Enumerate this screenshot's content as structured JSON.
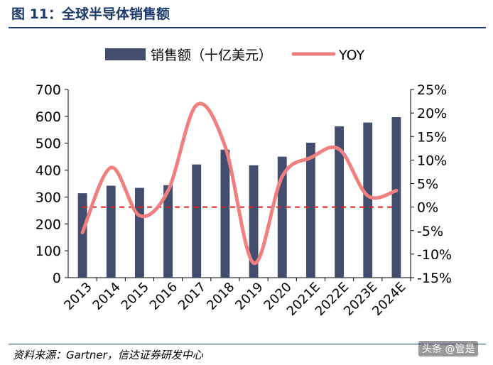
{
  "figure": {
    "title": "图 11：全球半导体销售额",
    "source": "资料来源：Gartner，信达证券研发中心",
    "watermark": "头条 @管是"
  },
  "chart_data": {
    "type": "bar",
    "categories": [
      "2013",
      "2014",
      "2015",
      "2016",
      "2017",
      "2018",
      "2019",
      "2020",
      "2021E",
      "2022E",
      "2023E",
      "2024E"
    ],
    "series": [
      {
        "name": "销售额（十亿美元）",
        "type": "bar",
        "axis": "left",
        "color": "#434d6e",
        "values": [
          314,
          342,
          334,
          344,
          421,
          476,
          418,
          450,
          502,
          563,
          577,
          597
        ]
      },
      {
        "name": "YOY",
        "type": "line",
        "axis": "right",
        "color": "#f08080",
        "values": [
          -5.4,
          8.4,
          -1.8,
          3.5,
          21.7,
          12.9,
          -11.9,
          6.5,
          10.5,
          12.3,
          2.4,
          3.5
        ]
      }
    ],
    "left_axis": {
      "min": 0,
      "max": 700,
      "step": 100,
      "ticks": [
        "0",
        "100",
        "200",
        "300",
        "400",
        "500",
        "600",
        "700"
      ]
    },
    "right_axis": {
      "min": -15,
      "max": 25,
      "step": 5,
      "ticks": [
        "-15%",
        "-10%",
        "-5%",
        "0%",
        "5%",
        "10%",
        "15%",
        "20%",
        "25%"
      ]
    },
    "reference_line": {
      "value": 0,
      "axis": "right",
      "style": "dashed",
      "color": "#e02020"
    },
    "legend": {
      "placement": "top"
    },
    "grid": false
  }
}
